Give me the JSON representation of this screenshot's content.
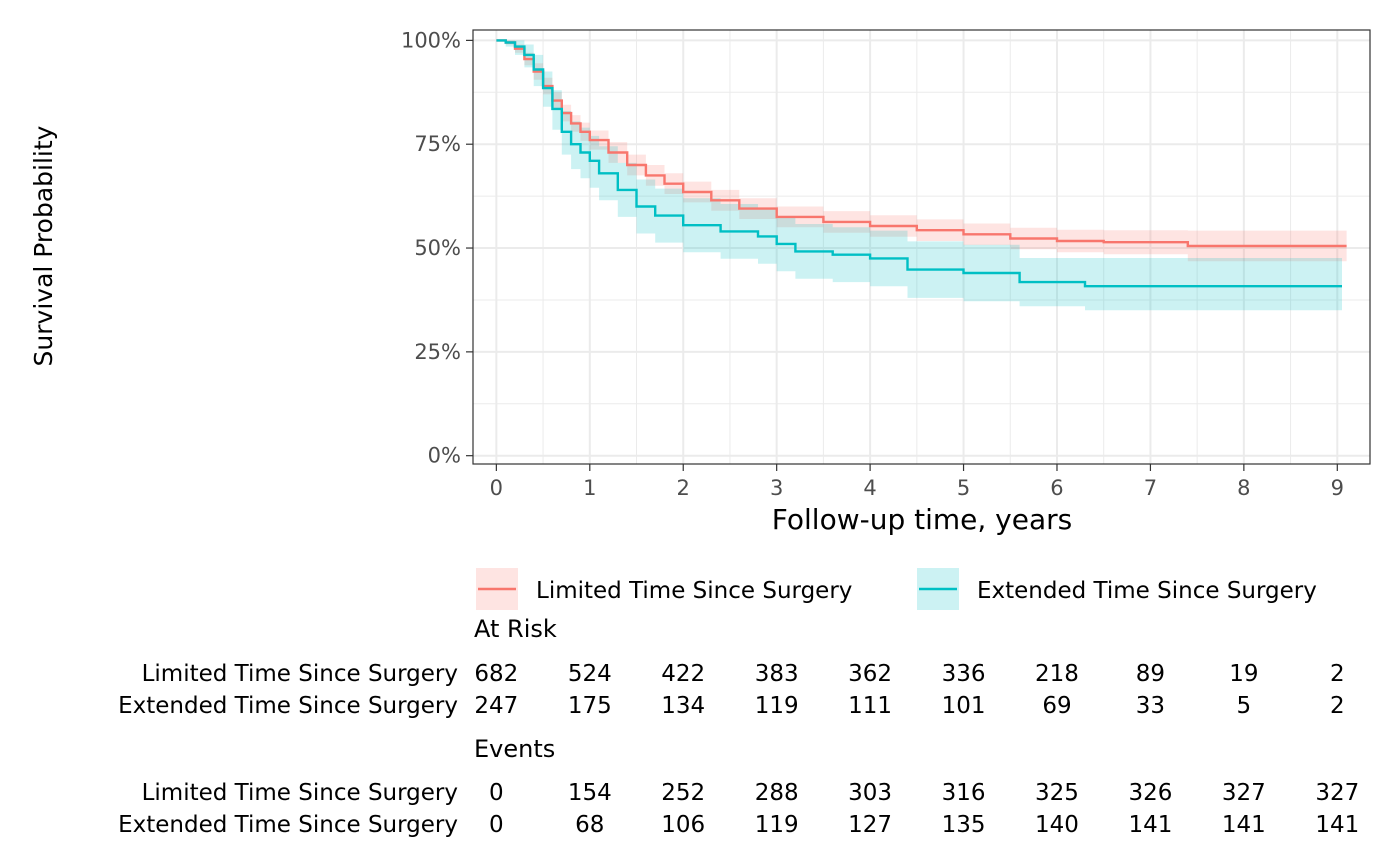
{
  "chart_data": {
    "type": "line",
    "subtype": "kaplan-meier survival curve with confidence bands",
    "xlabel": "Follow-up time, years",
    "ylabel": "Survival Probability",
    "xlim": [
      -0.25,
      9.35
    ],
    "ylim": [
      -0.02,
      1.025
    ],
    "x_ticks": [
      0,
      1,
      2,
      3,
      4,
      5,
      6,
      7,
      8,
      9
    ],
    "x_tick_labels": [
      "0",
      "1",
      "2",
      "3",
      "4",
      "5",
      "6",
      "7",
      "8",
      "9"
    ],
    "y_ticks": [
      0,
      0.25,
      0.5,
      0.75,
      1
    ],
    "y_tick_labels": [
      "0%",
      "25%",
      "50%",
      "75%",
      "100%"
    ],
    "grid": true,
    "legend_position": "bottom",
    "series": [
      {
        "name": "Limited Time Since Surgery",
        "color": "#F8766D",
        "band_color": "#F8766D",
        "x": [
          0,
          0.1,
          0.2,
          0.3,
          0.4,
          0.5,
          0.6,
          0.7,
          0.8,
          0.9,
          1.0,
          1.2,
          1.4,
          1.6,
          1.8,
          2.0,
          2.3,
          2.6,
          3.0,
          3.5,
          4.0,
          4.5,
          5.0,
          5.5,
          6.0,
          6.5,
          7.0,
          7.38,
          7.4,
          8.0,
          9.1
        ],
        "y": [
          1.0,
          0.995,
          0.98,
          0.955,
          0.925,
          0.89,
          0.855,
          0.825,
          0.8,
          0.78,
          0.76,
          0.73,
          0.7,
          0.675,
          0.655,
          0.635,
          0.615,
          0.595,
          0.575,
          0.563,
          0.553,
          0.543,
          0.533,
          0.523,
          0.517,
          0.514,
          0.514,
          0.514,
          0.505,
          0.505,
          0.505
        ],
        "lower": [
          1.0,
          0.99,
          0.97,
          0.94,
          0.905,
          0.87,
          0.835,
          0.805,
          0.78,
          0.758,
          0.737,
          0.705,
          0.675,
          0.65,
          0.63,
          0.61,
          0.59,
          0.57,
          0.55,
          0.537,
          0.527,
          0.517,
          0.507,
          0.497,
          0.49,
          0.485,
          0.485,
          0.485,
          0.468,
          0.468,
          0.468
        ],
        "upper": [
          1.0,
          1.0,
          0.99,
          0.97,
          0.945,
          0.91,
          0.875,
          0.845,
          0.82,
          0.802,
          0.783,
          0.755,
          0.725,
          0.7,
          0.68,
          0.66,
          0.64,
          0.62,
          0.6,
          0.589,
          0.579,
          0.569,
          0.559,
          0.549,
          0.544,
          0.543,
          0.543,
          0.543,
          0.542,
          0.542,
          0.542
        ]
      },
      {
        "name": "Extended Time Since Surgery",
        "color": "#00BFC4",
        "band_color": "#00BFC4",
        "x": [
          0,
          0.1,
          0.2,
          0.3,
          0.4,
          0.5,
          0.6,
          0.7,
          0.8,
          0.9,
          1.0,
          1.1,
          1.3,
          1.5,
          1.7,
          2.0,
          2.4,
          2.8,
          3.0,
          3.2,
          3.6,
          4.0,
          4.4,
          5.0,
          5.55,
          5.6,
          6.25,
          6.3,
          7.0,
          8.0,
          9.05
        ],
        "y": [
          1.0,
          0.995,
          0.985,
          0.965,
          0.93,
          0.885,
          0.835,
          0.78,
          0.75,
          0.73,
          0.71,
          0.68,
          0.64,
          0.6,
          0.578,
          0.555,
          0.54,
          0.528,
          0.51,
          0.492,
          0.484,
          0.475,
          0.448,
          0.44,
          0.44,
          0.418,
          0.418,
          0.408,
          0.408,
          0.408,
          0.408
        ],
        "lower": [
          1.0,
          0.985,
          0.965,
          0.935,
          0.89,
          0.84,
          0.785,
          0.725,
          0.69,
          0.668,
          0.645,
          0.615,
          0.575,
          0.535,
          0.513,
          0.49,
          0.474,
          0.462,
          0.444,
          0.426,
          0.418,
          0.408,
          0.38,
          0.372,
          0.372,
          0.36,
          0.36,
          0.35,
          0.35,
          0.35,
          0.35
        ],
        "upper": [
          1.0,
          1.0,
          1.0,
          0.99,
          0.965,
          0.925,
          0.88,
          0.83,
          0.805,
          0.79,
          0.77,
          0.745,
          0.705,
          0.665,
          0.643,
          0.62,
          0.606,
          0.594,
          0.576,
          0.558,
          0.55,
          0.542,
          0.516,
          0.508,
          0.508,
          0.476,
          0.476,
          0.476,
          0.476,
          0.476,
          0.476
        ]
      }
    ],
    "tables": [
      {
        "title": "At Risk",
        "times": [
          0,
          1,
          2,
          3,
          4,
          5,
          6,
          7,
          8,
          9
        ],
        "rows": [
          {
            "name": "Limited Time Since Surgery",
            "values": [
              "682",
              "524",
              "422",
              "383",
              "362",
              "336",
              "218",
              "89",
              "19",
              "2"
            ]
          },
          {
            "name": "Extended Time Since Surgery",
            "values": [
              "247",
              "175",
              "134",
              "119",
              "111",
              "101",
              "69",
              "33",
              "5",
              "2"
            ]
          }
        ]
      },
      {
        "title": "Events",
        "times": [
          0,
          1,
          2,
          3,
          4,
          5,
          6,
          7,
          8,
          9
        ],
        "rows": [
          {
            "name": "Limited Time Since Surgery",
            "values": [
              "0",
              "154",
              "252",
              "288",
              "303",
              "316",
              "325",
              "326",
              "327",
              "327"
            ]
          },
          {
            "name": "Extended Time Since Surgery",
            "values": [
              "0",
              "68",
              "106",
              "119",
              "127",
              "135",
              "140",
              "141",
              "141",
              "141"
            ]
          }
        ]
      }
    ]
  }
}
